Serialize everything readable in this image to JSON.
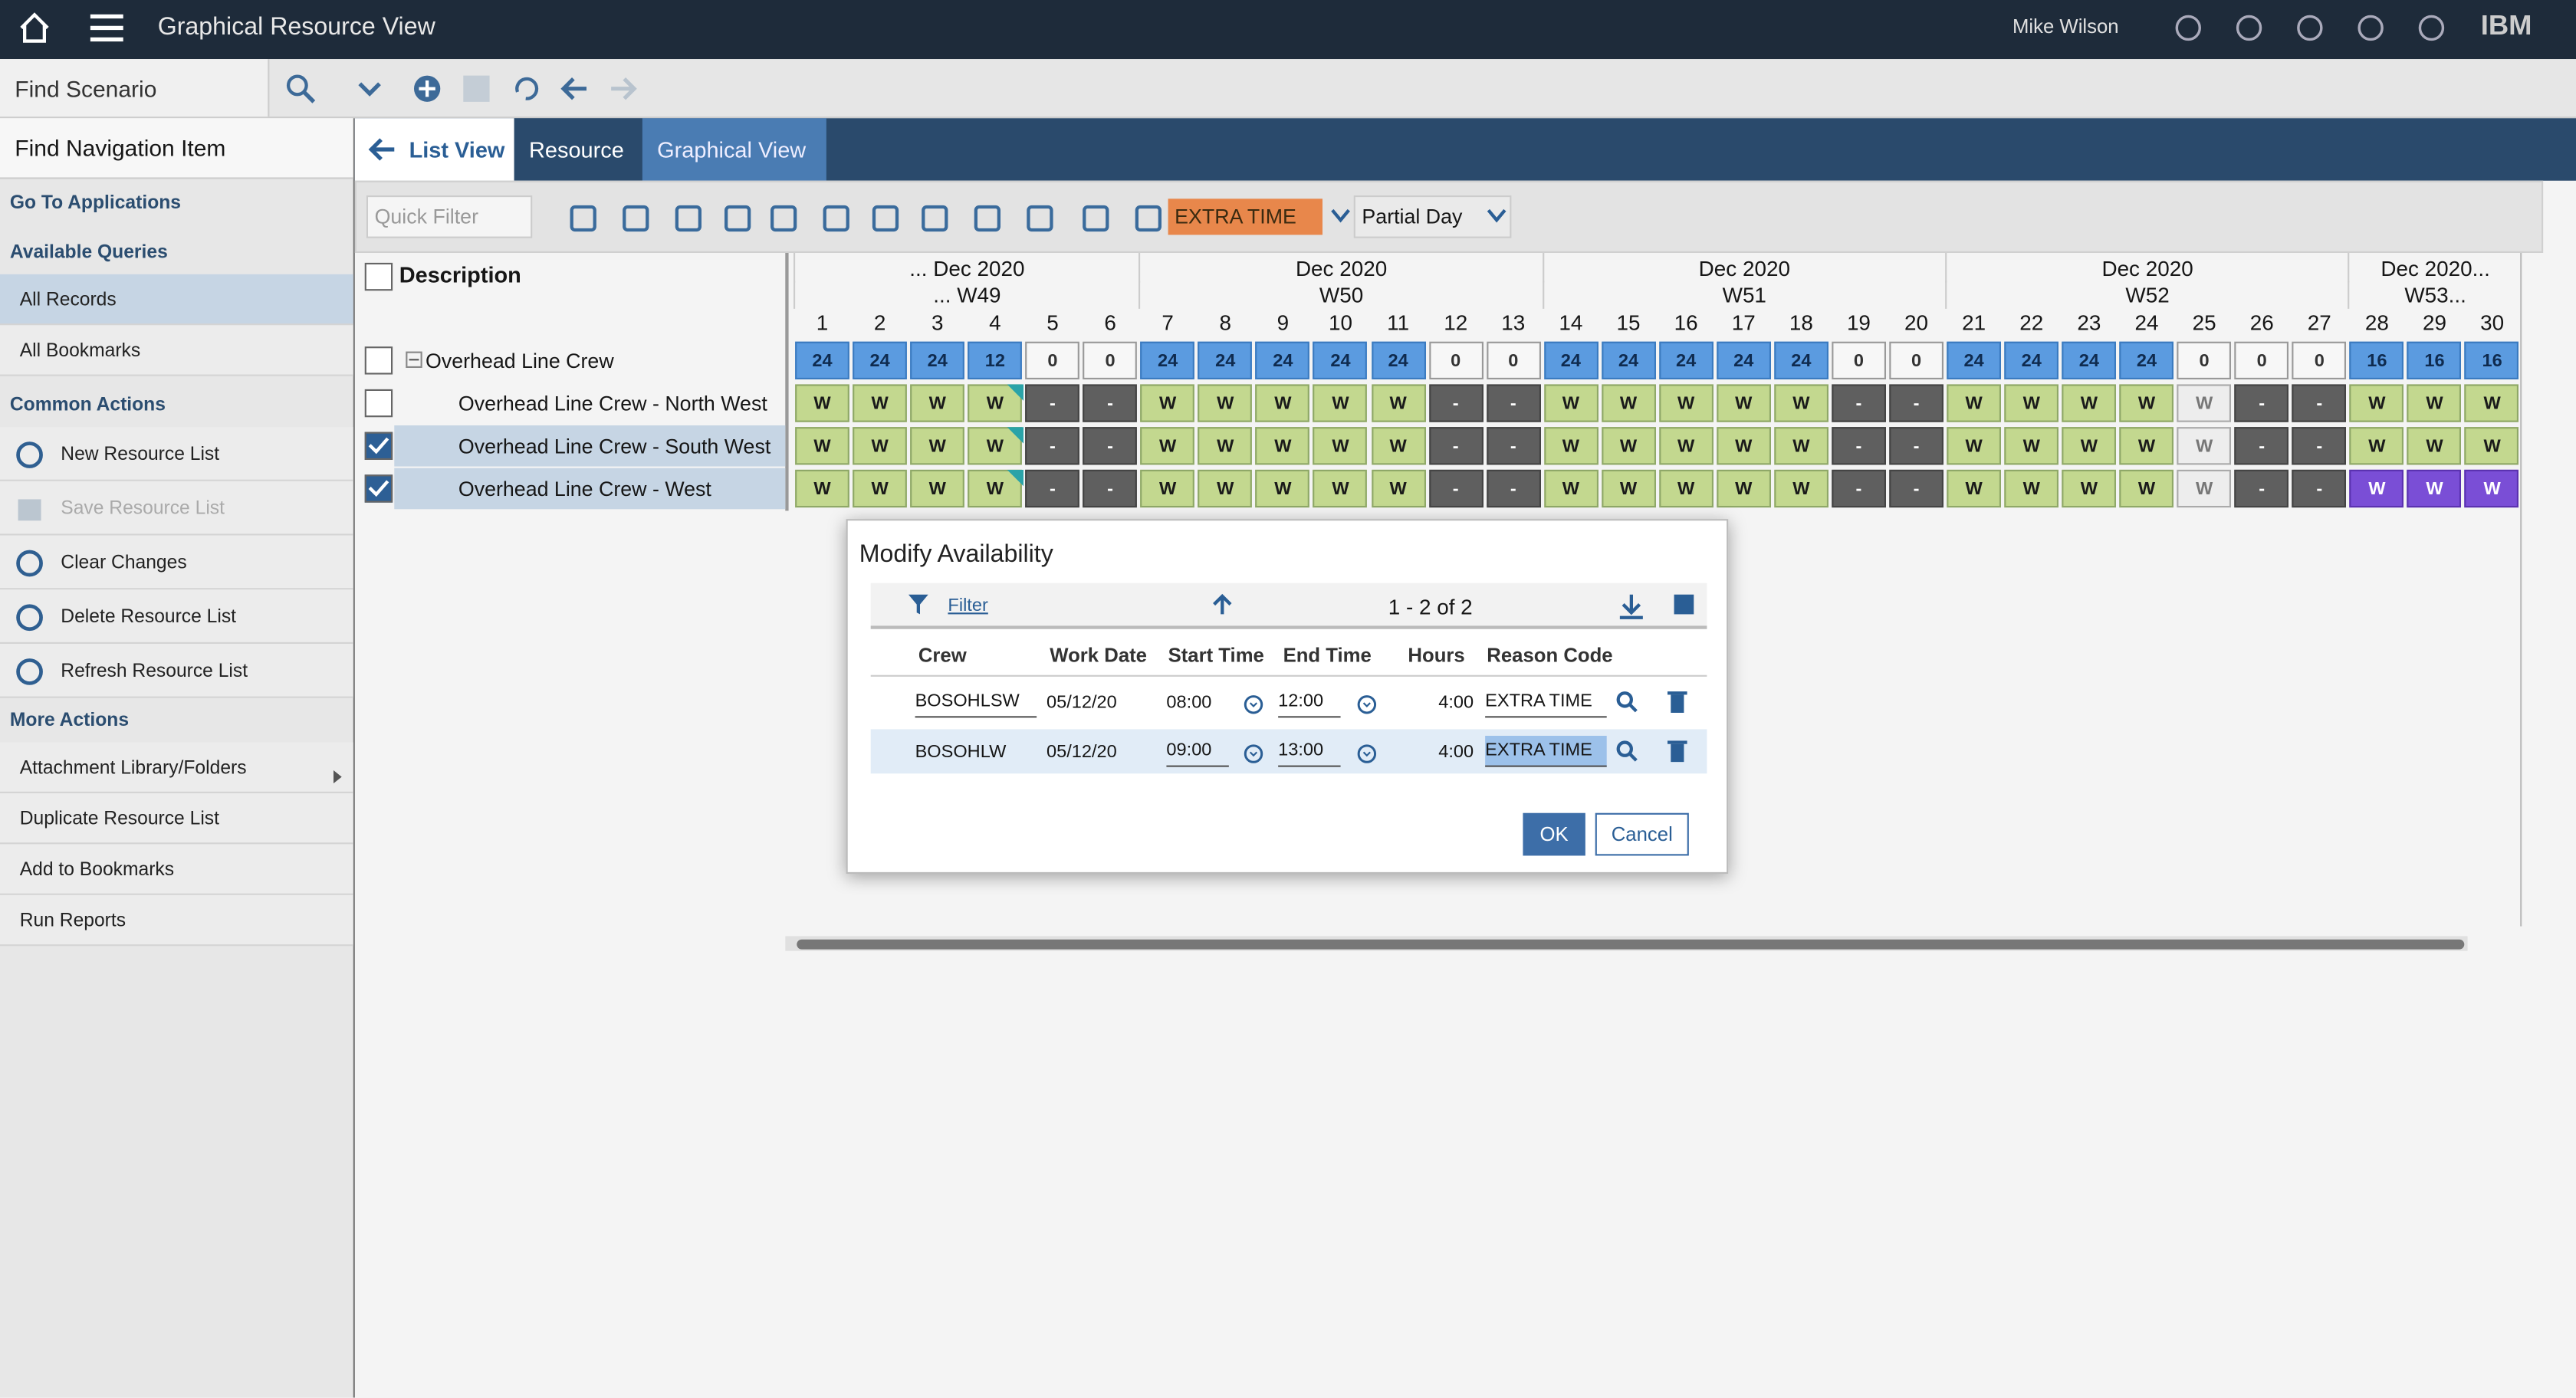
{
  "header": {
    "title": "Graphical Resource View",
    "user": "Mike Wilson",
    "brand": "IBM"
  },
  "toolbar": {
    "find_scenario": "Find Scenario"
  },
  "sidebar": {
    "find_nav": "Find Navigation Item",
    "sections": [
      {
        "title": "Go To Applications",
        "items": []
      },
      {
        "title": "Available Queries",
        "items": [
          "All Records",
          "All Bookmarks"
        ]
      },
      {
        "title": "Common Actions",
        "items": [
          "New Resource List",
          "Save Resource List",
          "Clear Changes",
          "Delete Resource List",
          "Refresh Resource List"
        ]
      },
      {
        "title": "More Actions",
        "items": [
          "Attachment Library/Folders",
          "Duplicate Resource List",
          "Add to Bookmarks",
          "Run Reports"
        ]
      }
    ]
  },
  "tabs": [
    "List View",
    "Resource",
    "Graphical View"
  ],
  "filters": {
    "quick_filter": "Quick Filter",
    "reason": "EXTRA TIME",
    "mode": "Partial Day"
  },
  "grid": {
    "description_header": "Description",
    "months": [
      "... Dec 2020",
      "Dec 2020",
      "Dec 2020",
      "Dec 2020",
      "Dec 2020..."
    ],
    "weeks": [
      "... W49",
      "W50",
      "W51",
      "W52",
      "W53..."
    ],
    "days": [
      1,
      2,
      3,
      4,
      5,
      6,
      7,
      8,
      9,
      10,
      11,
      12,
      13,
      14,
      15,
      16,
      17,
      18,
      19,
      20,
      21,
      22,
      23,
      24,
      25,
      26,
      27,
      28,
      29,
      30
    ],
    "rows": [
      {
        "label": "Overhead Line Crew",
        "checked": false,
        "kinds": "hhhhzzhhhhhzzhhhhhzzhhhhzzzhhh",
        "cells": [
          24,
          24,
          24,
          12,
          0,
          0,
          24,
          24,
          24,
          24,
          24,
          0,
          0,
          24,
          24,
          24,
          24,
          24,
          0,
          0,
          24,
          24,
          24,
          24,
          0,
          0,
          0,
          16,
          16,
          16
        ]
      },
      {
        "label": "Overhead Line Crew - North West",
        "checked": false,
        "kinds": "wwwpoowwwwwoowwwwwoowwwwgoowww",
        "cells": [
          "W",
          "W",
          "W",
          "W",
          "-",
          "-",
          "W",
          "W",
          "W",
          "W",
          "W",
          "-",
          "-",
          "W",
          "W",
          "W",
          "W",
          "W",
          "-",
          "-",
          "W",
          "W",
          "W",
          "W",
          "W",
          "-",
          "-",
          "W",
          "W",
          "W"
        ]
      },
      {
        "label": "Overhead Line Crew - South West",
        "checked": true,
        "kinds": "wwwpoowwwwwoowwwwwoowwwwgoowww",
        "cells": [
          "W",
          "W",
          "W",
          "W",
          "-",
          "-",
          "W",
          "W",
          "W",
          "W",
          "W",
          "-",
          "-",
          "W",
          "W",
          "W",
          "W",
          "W",
          "-",
          "-",
          "W",
          "W",
          "W",
          "W",
          "W",
          "-",
          "-",
          "W",
          "W",
          "W"
        ]
      },
      {
        "label": "Overhead Line Crew - West",
        "checked": true,
        "kinds": "wwwpoowwwwwoowwwwwoowwwwgooxxx",
        "cells": [
          "W",
          "W",
          "W",
          "W",
          "-",
          "-",
          "W",
          "W",
          "W",
          "W",
          "W",
          "-",
          "-",
          "W",
          "W",
          "W",
          "W",
          "W",
          "-",
          "-",
          "W",
          "W",
          "W",
          "W",
          "W",
          "-",
          "-",
          "W",
          "W",
          "W"
        ]
      }
    ]
  },
  "dialog": {
    "title": "Modify Availability",
    "filter": "Filter",
    "pager": "1 - 2 of 2",
    "columns": [
      "Crew",
      "Work Date",
      "Start Time",
      "End Time",
      "Hours",
      "Reason Code"
    ],
    "rows": [
      [
        "BOSOHLSW",
        "05/12/20",
        "08:00",
        "12:00",
        "4:00",
        "EXTRA TIME"
      ],
      [
        "BOSOHLW",
        "05/12/20",
        "09:00",
        "13:00",
        "4:00",
        "EXTRA TIME"
      ]
    ],
    "ok": "OK",
    "cancel": "Cancel"
  }
}
